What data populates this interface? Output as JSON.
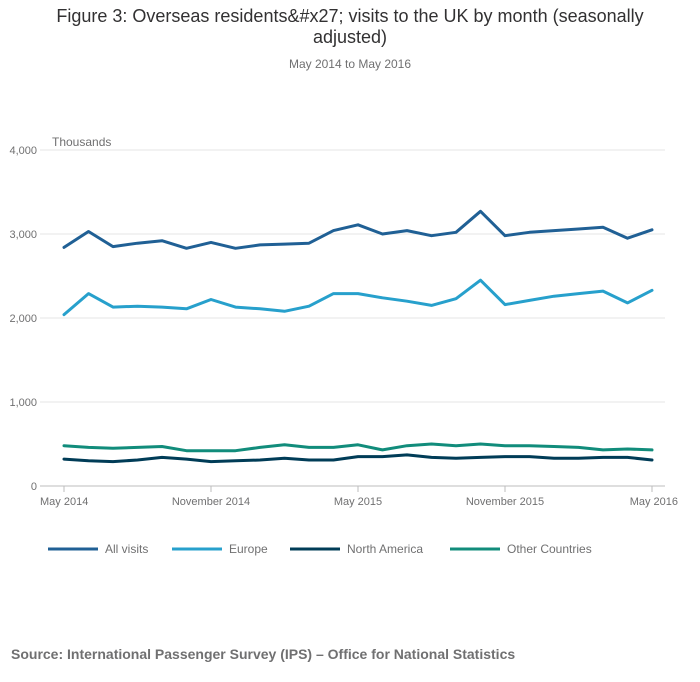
{
  "title": "Figure 3: Overseas residents&#x27; visits to the UK by month (seasonally adjusted)",
  "subtitle": "May 2014 to May 2016",
  "source": "Source: International Passenger Survey (IPS) – Office for National Statistics",
  "chart_data": {
    "type": "line",
    "ylabel": "Thousands",
    "ylim": [
      0,
      4000
    ],
    "yticks": [
      0,
      1000,
      2000,
      3000,
      4000
    ],
    "ytick_labels": [
      "0",
      "1,000",
      "2,000",
      "3,000",
      "4,000"
    ],
    "x": [
      "May 2014",
      "Jun 2014",
      "Jul 2014",
      "Aug 2014",
      "Sep 2014",
      "Oct 2014",
      "Nov 2014",
      "Dec 2014",
      "Jan 2015",
      "Feb 2015",
      "Mar 2015",
      "Apr 2015",
      "May 2015",
      "Jun 2015",
      "Jul 2015",
      "Aug 2015",
      "Sep 2015",
      "Oct 2015",
      "Nov 2015",
      "Dec 2015",
      "Jan 2016",
      "Feb 2016",
      "Mar 2016",
      "Apr 2016",
      "May 2016"
    ],
    "xtick_labels": [
      {
        "index": 0,
        "label": "May 2014"
      },
      {
        "index": 6,
        "label": "November 2014"
      },
      {
        "index": 12,
        "label": "May 2015"
      },
      {
        "index": 18,
        "label": "November 2015"
      },
      {
        "index": 24,
        "label": "May 2016"
      }
    ],
    "grid": true,
    "legend": "bottom",
    "series": [
      {
        "name": "All visits",
        "color": "#206095",
        "values": [
          2840,
          3030,
          2850,
          2890,
          2920,
          2830,
          2900,
          2830,
          2870,
          2880,
          2890,
          3040,
          3110,
          3000,
          3040,
          2980,
          3020,
          3270,
          2980,
          3020,
          3040,
          3060,
          3080,
          2950,
          3050
        ]
      },
      {
        "name": "Europe",
        "color": "#27a0cc",
        "values": [
          2040,
          2290,
          2130,
          2140,
          2130,
          2110,
          2220,
          2130,
          2110,
          2080,
          2140,
          2290,
          2290,
          2240,
          2200,
          2150,
          2230,
          2450,
          2160,
          2210,
          2260,
          2290,
          2320,
          2180,
          2330
        ]
      },
      {
        "name": "North America",
        "color": "#003c57",
        "values": [
          320,
          300,
          290,
          310,
          340,
          320,
          290,
          300,
          310,
          330,
          310,
          310,
          350,
          350,
          370,
          340,
          330,
          340,
          350,
          350,
          330,
          330,
          340,
          340,
          310
        ]
      },
      {
        "name": "Other Countries",
        "color": "#118c7b",
        "values": [
          480,
          460,
          450,
          460,
          470,
          420,
          420,
          420,
          460,
          490,
          460,
          460,
          490,
          430,
          480,
          500,
          480,
          500,
          480,
          480,
          470,
          460,
          430,
          440,
          430
        ]
      }
    ]
  }
}
